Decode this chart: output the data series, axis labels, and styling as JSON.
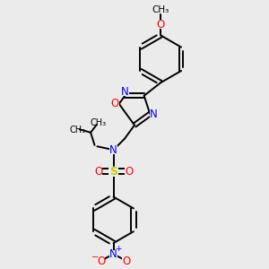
{
  "bg_color": "#ebebeb",
  "bond_color": "#000000",
  "N_color": "#0000ff",
  "O_color": "#ff0000",
  "S_color": "#cccc00",
  "figsize": [
    3.0,
    3.0
  ],
  "dpi": 100,
  "bond_lw": 1.4,
  "xlim": [
    0,
    10
  ],
  "ylim": [
    0,
    10
  ]
}
